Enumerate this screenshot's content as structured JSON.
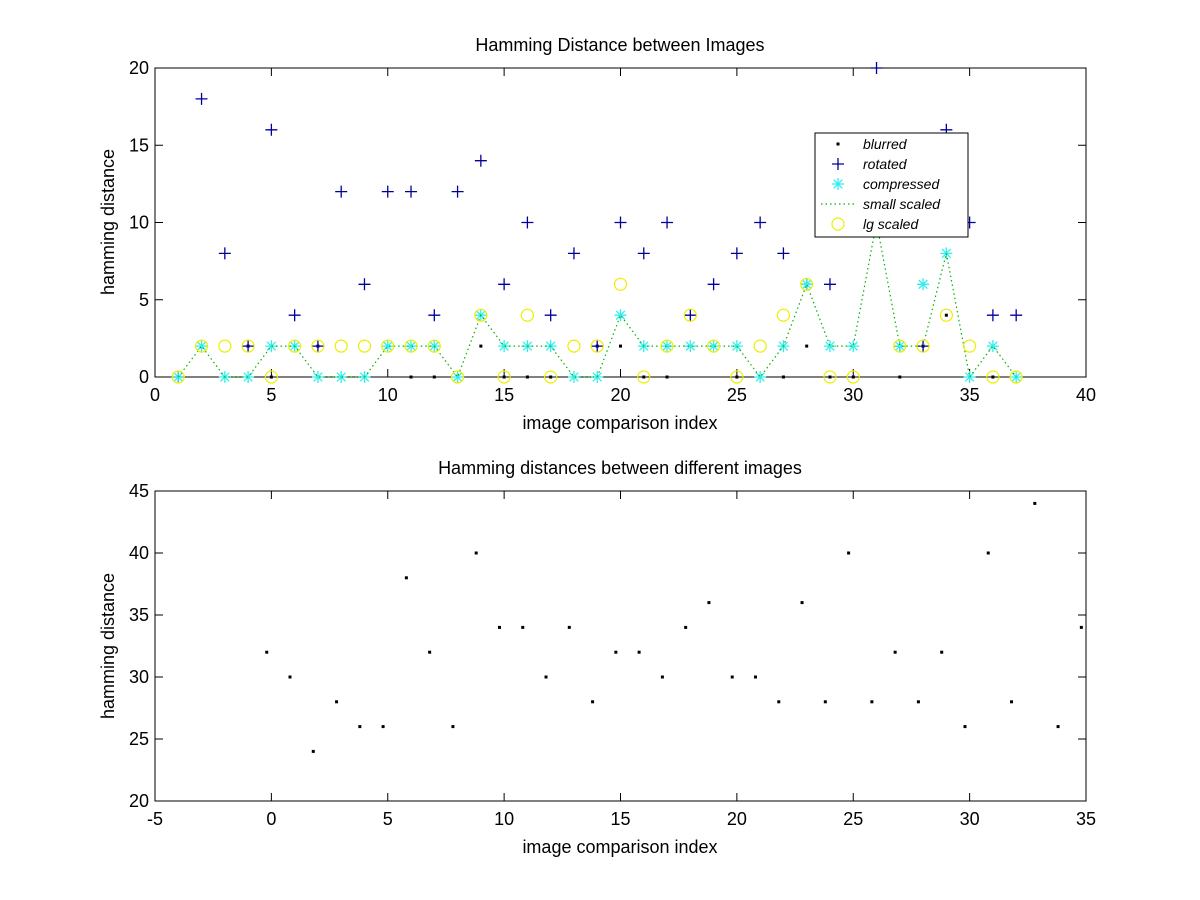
{
  "chart_data": [
    {
      "type": "scatter",
      "title": "Hamming Distance between Images",
      "xlabel": "image comparison index",
      "ylabel": "hamming distance",
      "xlim": [
        0,
        40
      ],
      "ylim": [
        0,
        20
      ],
      "xticks": [
        0,
        5,
        10,
        15,
        20,
        25,
        30,
        35,
        40
      ],
      "yticks": [
        0,
        5,
        10,
        15,
        20
      ],
      "grid": false,
      "legend_position": "top-right",
      "x": [
        1,
        2,
        3,
        4,
        5,
        6,
        7,
        8,
        9,
        10,
        11,
        12,
        13,
        14,
        15,
        16,
        17,
        18,
        19,
        20,
        21,
        22,
        23,
        24,
        25,
        26,
        27,
        28,
        29,
        30,
        31,
        32,
        33,
        34,
        35,
        36,
        37
      ],
      "series": [
        {
          "name": "blurred",
          "marker": "dot",
          "color": "#000000",
          "values": [
            0,
            2,
            0,
            2,
            0,
            2,
            2,
            0,
            0,
            2,
            0,
            0,
            0,
            2,
            0,
            0,
            0,
            0,
            2,
            2,
            0,
            0,
            2,
            2,
            0,
            0,
            0,
            2,
            0,
            0,
            10,
            0,
            2,
            4,
            0,
            0,
            0
          ]
        },
        {
          "name": "rotated",
          "marker": "plus",
          "color": "#00009c",
          "values": [
            0,
            18,
            8,
            2,
            16,
            4,
            2,
            12,
            6,
            12,
            12,
            4,
            12,
            14,
            6,
            10,
            4,
            8,
            2,
            10,
            8,
            10,
            4,
            6,
            8,
            10,
            8,
            6,
            6,
            10,
            20,
            2,
            2,
            16,
            10,
            4,
            4
          ]
        },
        {
          "name": "compressed",
          "marker": "asterisk",
          "color": "#33eeee",
          "values": [
            0,
            2,
            0,
            0,
            2,
            2,
            0,
            0,
            0,
            2,
            2,
            2,
            0,
            4,
            2,
            2,
            2,
            0,
            0,
            4,
            2,
            2,
            2,
            2,
            2,
            0,
            2,
            6,
            2,
            2,
            10,
            2,
            6,
            8,
            0,
            2,
            0
          ]
        },
        {
          "name": "small scaled",
          "marker": "dotted-line",
          "color": "#00b400",
          "values": [
            0,
            2,
            0,
            0,
            2,
            2,
            0,
            0,
            0,
            2,
            2,
            2,
            0,
            4,
            2,
            2,
            2,
            0,
            0,
            4,
            2,
            2,
            2,
            2,
            2,
            0,
            2,
            6,
            2,
            2,
            10,
            2,
            2,
            8,
            0,
            2,
            0
          ]
        },
        {
          "name": "lg scaled",
          "marker": "circle",
          "color": "#eeee00",
          "values": [
            0,
            2,
            2,
            2,
            0,
            2,
            2,
            2,
            2,
            2,
            2,
            2,
            0,
            4,
            0,
            4,
            0,
            2,
            2,
            6,
            0,
            2,
            4,
            2,
            0,
            2,
            4,
            6,
            0,
            0,
            10,
            2,
            2,
            4,
            2,
            0,
            0
          ]
        }
      ]
    },
    {
      "type": "scatter",
      "title": "Hamming distances between different images",
      "xlabel": "image comparison index",
      "ylabel": "hamming distance",
      "xlim": [
        -5,
        35
      ],
      "ylim": [
        20,
        45
      ],
      "xticks": [
        -5,
        0,
        5,
        10,
        15,
        20,
        25,
        30,
        35
      ],
      "yticks": [
        20,
        25,
        30,
        35,
        40,
        45
      ],
      "grid": false,
      "series": [
        {
          "marker": "dot",
          "color": "#000000",
          "x": [
            -0.2,
            0.8,
            1.8,
            2.8,
            3.8,
            4.8,
            5.8,
            6.8,
            7.8,
            8.8,
            9.8,
            10.8,
            11.8,
            12.8,
            13.8,
            14.8,
            15.8,
            16.8,
            17.8,
            18.8,
            19.8,
            20.8,
            21.8,
            22.8,
            23.8,
            24.8,
            25.8,
            26.8,
            27.8,
            28.8,
            29.8,
            30.8,
            31.8,
            32.8,
            33.8,
            34.8
          ],
          "values": [
            32,
            30,
            24,
            28,
            26,
            26,
            38,
            32,
            26,
            40,
            34,
            34,
            30,
            34,
            28,
            32,
            32,
            30,
            34,
            36,
            30,
            30,
            28,
            36,
            28,
            40,
            28,
            32,
            28,
            32,
            26,
            40,
            28,
            44,
            26,
            34
          ]
        }
      ]
    }
  ]
}
